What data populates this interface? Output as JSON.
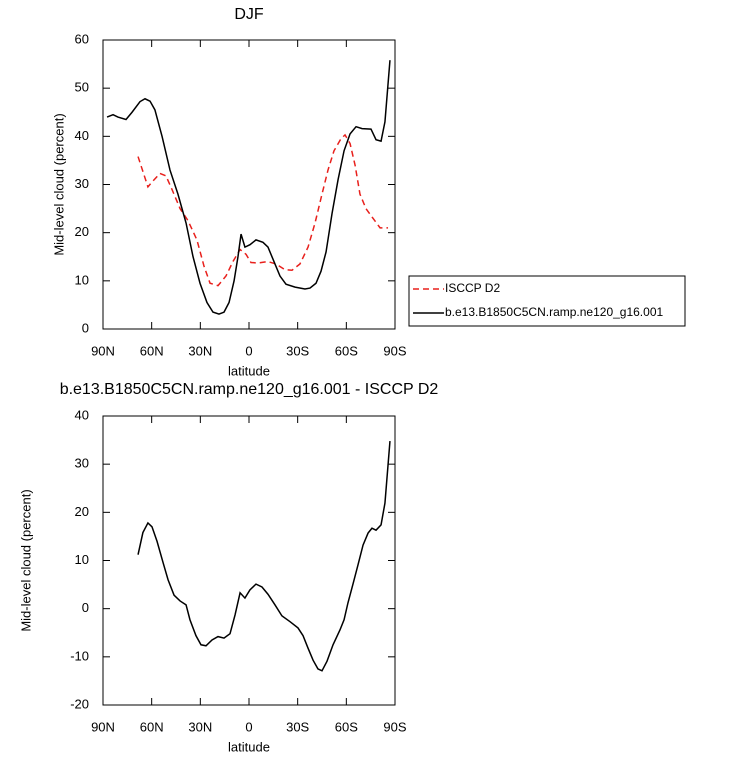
{
  "chart_data": [
    {
      "type": "line",
      "title": "DJF",
      "x_label": "latitude",
      "y_label": "Mid-level cloud (percent)",
      "xlim": [
        90,
        -90
      ],
      "xticks": [
        {
          "value": 90,
          "label": "90N"
        },
        {
          "value": 60,
          "label": "60N"
        },
        {
          "value": 30,
          "label": "30N"
        },
        0,
        {
          "value": -30,
          "label": "30S"
        },
        {
          "value": -60,
          "label": "60S"
        },
        {
          "value": -90,
          "label": "90S"
        }
      ],
      "ylim": [
        0,
        60
      ],
      "yticks": [
        0,
        10,
        20,
        30,
        40,
        50,
        60
      ],
      "legend": "right",
      "series": [
        {
          "name": "ISCCP D2",
          "color": "#e8201c",
          "dash": true,
          "x": [
            68.4,
            62.3,
            59.8,
            54.9,
            51.2,
            47.5,
            42.5,
            37.6,
            32.1,
            27.7,
            24,
            19.1,
            14.2,
            9.9,
            5.5,
            1.8,
            -1.2,
            -5.5,
            -11.7,
            -16.6,
            -22.2,
            -26.5,
            -31.4,
            -36.4,
            -40.7,
            -45,
            -48.7,
            -52.4,
            -56.7,
            -59.2,
            -62.3,
            -65.4,
            -68.4,
            -72.1,
            -76.4,
            -80.8,
            -85.7
          ],
          "values": [
            35.8,
            29.5,
            30.5,
            32.3,
            31.8,
            29,
            25,
            22.5,
            18.5,
            13,
            9.5,
            9,
            11,
            14,
            16.5,
            15.5,
            13.8,
            13.7,
            14,
            13.5,
            12.3,
            12.2,
            13.5,
            17,
            22,
            28,
            33,
            37,
            39.5,
            40.3,
            38.5,
            34,
            28,
            25,
            23,
            21,
            21
          ]
        },
        {
          "name": "b.e13.B1850C5CN.ramp.ne120_g16.001",
          "color": "#000000",
          "dash": false,
          "x": [
            87.5,
            83.8,
            80.8,
            75.8,
            72.1,
            67.2,
            64.1,
            61,
            58,
            53.6,
            48.7,
            43.8,
            38.8,
            34.5,
            30.2,
            25.9,
            22.2,
            18.5,
            15.4,
            12.3,
            9.2,
            6.8,
            4.9,
            2.5,
            -0.6,
            -4.3,
            -8.6,
            -11.7,
            -15.4,
            -19.1,
            -22.8,
            -28.4,
            -34.5,
            -37.6,
            -41.3,
            -44.4,
            -47.5,
            -51.2,
            -54.9,
            -58.6,
            -62.3,
            -66,
            -69.7,
            -75.2,
            -78.3,
            -81.4,
            -83.8,
            -86.9
          ],
          "values": [
            44,
            44.5,
            44,
            43.5,
            45,
            47.2,
            47.8,
            47.3,
            45.5,
            40,
            33,
            28,
            22,
            15,
            9.5,
            5.5,
            3.5,
            3.1,
            3.5,
            5.5,
            10,
            15,
            19.7,
            17,
            17.5,
            18.5,
            18,
            17,
            14,
            11,
            9.3,
            8.7,
            8.3,
            8.5,
            9.5,
            12,
            16,
            24,
            31,
            37,
            40.5,
            42,
            41.6,
            41.5,
            39.3,
            39,
            43,
            55.8
          ]
        }
      ]
    },
    {
      "type": "line",
      "title": "b.e13.B1850C5CN.ramp.ne120_g16.001 - ISCCP D2",
      "x_label": "latitude",
      "y_label": "Mid-level cloud (percent)",
      "xlim": [
        90,
        -90
      ],
      "xticks": [
        {
          "value": 90,
          "label": "90N"
        },
        {
          "value": 60,
          "label": "60N"
        },
        {
          "value": 30,
          "label": "30N"
        },
        0,
        {
          "value": -30,
          "label": "30S"
        },
        {
          "value": -60,
          "label": "60S"
        },
        {
          "value": -90,
          "label": "90S"
        }
      ],
      "ylim": [
        -20,
        40
      ],
      "yticks": [
        -20,
        -10,
        0,
        10,
        20,
        30,
        40
      ],
      "series": [
        {
          "color": "#000000",
          "dash": false,
          "x": [
            68.4,
            65.4,
            62.3,
            59.8,
            56.7,
            53,
            49.9,
            46.2,
            42.5,
            38.8,
            36.4,
            32.7,
            29.6,
            26.5,
            22.8,
            19.1,
            15.4,
            11.7,
            8.6,
            5.5,
            2.5,
            -0.6,
            -4.3,
            -8,
            -11.7,
            -16,
            -20.3,
            -25.3,
            -30.2,
            -33.3,
            -36.4,
            -39.5,
            -42.5,
            -45,
            -48.1,
            -51.8,
            -56.1,
            -58.6,
            -61,
            -64.1,
            -67.2,
            -70.3,
            -73.4,
            -75.8,
            -78.3,
            -81.4,
            -83.8,
            -86.9
          ],
          "values": [
            11.2,
            15.8,
            17.8,
            17,
            14,
            9.6,
            6,
            2.8,
            1.6,
            0.8,
            -2.3,
            -5.6,
            -7.5,
            -7.7,
            -6.5,
            -5.8,
            -6.1,
            -5.2,
            -1.3,
            3.3,
            2.2,
            3.9,
            5.1,
            4.5,
            3,
            0.8,
            -1.5,
            -2.7,
            -4,
            -5.6,
            -8.2,
            -10.7,
            -12.5,
            -12.9,
            -10.9,
            -7.5,
            -4.4,
            -2.3,
            1.2,
            5.1,
            9.1,
            13.2,
            15.7,
            16.7,
            16.3,
            17.4,
            21.9,
            34.8
          ]
        }
      ]
    }
  ]
}
